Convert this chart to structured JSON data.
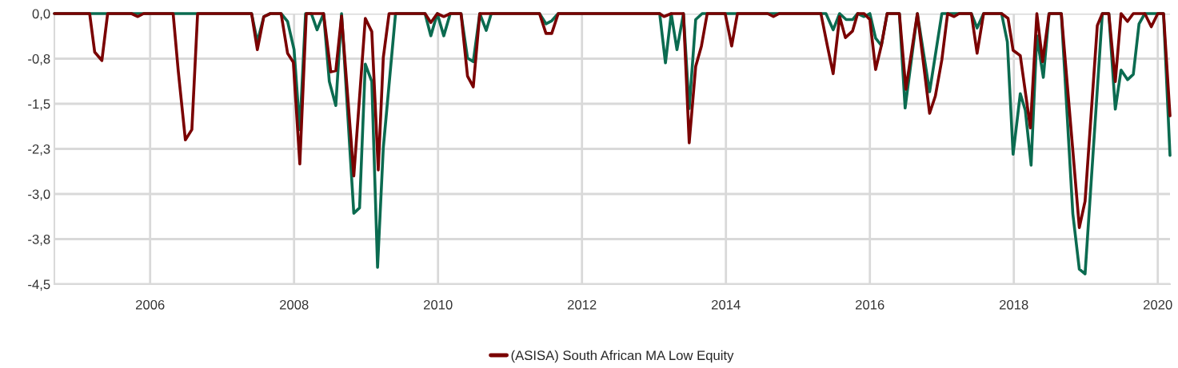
{
  "chart_data": {
    "type": "line",
    "series": [
      {
        "color": "#0b6b50",
        "x": [
          2004.67,
          2007.41,
          2007.49,
          2007.58,
          2007.67,
          2007.82,
          2007.91,
          2008.0,
          2008.08,
          2008.16,
          2008.24,
          2008.32,
          2008.41,
          2008.49,
          2008.58,
          2008.66,
          2008.83,
          2008.91,
          2008.99,
          2009.08,
          2009.16,
          2009.24,
          2009.41,
          2009.82,
          2009.9,
          2009.99,
          2010.08,
          2010.17,
          2010.32,
          2010.41,
          2010.49,
          2010.58,
          2010.67,
          2010.74,
          2011.41,
          2011.5,
          2011.58,
          2011.67,
          2013.08,
          2013.16,
          2013.24,
          2013.32,
          2013.41,
          2013.49,
          2013.58,
          2013.67,
          2015.39,
          2015.49,
          2015.58,
          2015.67,
          2015.76,
          2015.83,
          2015.92,
          2016.0,
          2016.08,
          2016.16,
          2016.24,
          2016.41,
          2016.49,
          2016.66,
          2016.83,
          2017.0,
          2017.41,
          2017.49,
          2017.58,
          2017.83,
          2017.91,
          2017.99,
          2018.09,
          2018.16,
          2018.24,
          2018.32,
          2018.41,
          2018.49,
          2018.66,
          2018.82,
          2018.91,
          2018.99,
          2019.23,
          2019.32,
          2019.41,
          2019.49,
          2019.58,
          2019.66,
          2019.74,
          2019.82,
          2020.08,
          2020.17
        ],
        "values": [
          0,
          0,
          -0.47,
          -0.05,
          0,
          0,
          -0.13,
          -0.6,
          -1.93,
          0,
          0,
          -0.27,
          0,
          -1.13,
          -1.53,
          0,
          -3.32,
          -3.23,
          -0.84,
          -1.13,
          -4.22,
          -2.23,
          0,
          0,
          -0.37,
          0,
          -0.37,
          0,
          0,
          -0.74,
          -0.8,
          0,
          -0.28,
          0,
          0,
          -0.17,
          -0.12,
          0,
          0,
          -0.82,
          0,
          -0.6,
          0,
          -1.58,
          -0.1,
          0,
          0,
          -0.27,
          0,
          -0.1,
          -0.1,
          0,
          -0.05,
          0,
          -0.41,
          -0.53,
          0,
          0,
          -1.57,
          0,
          -1.3,
          0,
          0,
          -0.24,
          0,
          0,
          -0.47,
          -2.34,
          -1.33,
          -1.61,
          -2.52,
          -0.37,
          -1.06,
          0,
          0,
          -3.33,
          -4.25,
          -4.33,
          0,
          0,
          -1.59,
          -0.94,
          -1.1,
          -1.01,
          -0.17,
          0,
          0,
          -2.36
        ]
      },
      {
        "name": "(ASISA) South African MA Low Equity",
        "color": "#7a0000",
        "x": [
          2004.67,
          2005.16,
          2005.23,
          2005.33,
          2005.41,
          2005.74,
          2005.83,
          2005.91,
          2006.32,
          2006.39,
          2006.49,
          2006.58,
          2006.66,
          2007.41,
          2007.49,
          2007.58,
          2007.67,
          2007.82,
          2007.91,
          2007.99,
          2008.08,
          2008.17,
          2008.41,
          2008.51,
          2008.58,
          2008.66,
          2008.83,
          2008.99,
          2009.08,
          2009.17,
          2009.24,
          2009.32,
          2009.82,
          2009.9,
          2009.99,
          2010.08,
          2010.17,
          2010.32,
          2010.41,
          2010.49,
          2010.58,
          2011.41,
          2011.5,
          2011.58,
          2011.67,
          2013.08,
          2013.14,
          2013.24,
          2013.41,
          2013.49,
          2013.58,
          2013.66,
          2013.74,
          2013.99,
          2014.08,
          2014.16,
          2014.58,
          2014.66,
          2014.74,
          2015.32,
          2015.41,
          2015.49,
          2015.58,
          2015.66,
          2015.76,
          2015.83,
          2015.92,
          2016.0,
          2016.08,
          2016.16,
          2016.24,
          2016.41,
          2016.5,
          2016.66,
          2016.83,
          2016.91,
          2017.0,
          2017.08,
          2017.17,
          2017.24,
          2017.41,
          2017.49,
          2017.58,
          2017.83,
          2017.92,
          2017.99,
          2018.09,
          2018.23,
          2018.32,
          2018.4,
          2018.49,
          2018.66,
          2018.91,
          2018.99,
          2019.16,
          2019.23,
          2019.32,
          2019.41,
          2019.49,
          2019.58,
          2019.66,
          2019.82,
          2019.91,
          2020.0,
          2020.08,
          2020.17
        ],
        "values": [
          0,
          0,
          -0.64,
          -0.78,
          0,
          0,
          -0.05,
          0,
          0,
          -0.94,
          -2.1,
          -1.93,
          0,
          0,
          -0.6,
          -0.05,
          0,
          0,
          -0.66,
          -0.81,
          -2.5,
          0,
          0,
          -0.97,
          -0.95,
          -0.04,
          -2.7,
          -0.08,
          -0.3,
          -2.6,
          -0.73,
          0,
          0,
          -0.15,
          0,
          -0.05,
          0,
          0,
          -1.04,
          -1.22,
          0,
          0,
          -0.33,
          -0.33,
          0,
          0,
          -0.05,
          0,
          0,
          -2.15,
          -0.88,
          -0.54,
          0,
          0,
          -0.54,
          0,
          0,
          -0.05,
          0,
          0,
          -0.54,
          -1.0,
          -0.05,
          -0.4,
          -0.29,
          0,
          0,
          -0.1,
          -0.93,
          -0.53,
          0,
          0,
          -1.26,
          0,
          -1.66,
          -1.37,
          -0.77,
          0,
          -0.05,
          0,
          0,
          -0.66,
          0,
          0,
          -0.08,
          -0.61,
          -0.7,
          -1.9,
          0,
          -0.8,
          0,
          0,
          -3.56,
          -3.12,
          -0.2,
          0,
          0,
          -1.13,
          0,
          -0.13,
          0,
          0,
          -0.22,
          0,
          0,
          -1.7
        ]
      }
    ],
    "xlim": [
      2004.67,
      2020.17
    ],
    "xticks": [
      2006,
      2008,
      2010,
      2012,
      2014,
      2016,
      2018,
      2020
    ],
    "ylim": [
      -4.5,
      0
    ],
    "yticks": [
      {
        "value": 0,
        "label": "0,0"
      },
      {
        "value": -0.75,
        "label": "-0,8"
      },
      {
        "value": -1.5,
        "label": "-1,5"
      },
      {
        "value": -2.25,
        "label": "-2,3"
      },
      {
        "value": -3,
        "label": "-3,0"
      },
      {
        "value": -3.75,
        "label": "-3,8"
      },
      {
        "value": -4.5,
        "label": "-4,5"
      }
    ],
    "grid": true,
    "legend": "bottom",
    "marker": "none",
    "line_style": "solid"
  }
}
